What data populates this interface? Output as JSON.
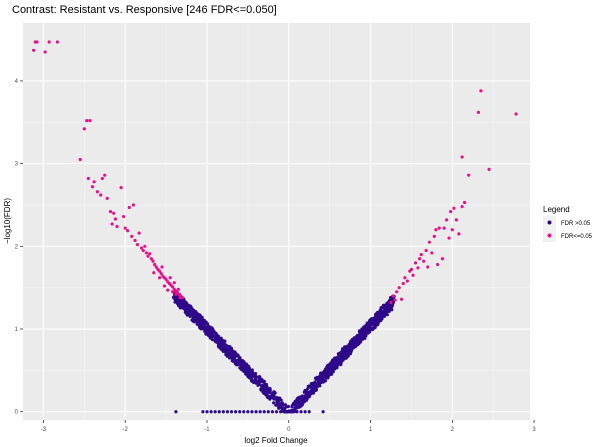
{
  "chart_data": {
    "type": "scatter",
    "title": "Contrast: Resistant vs. Responsive  [246 FDR<=0.050]",
    "xlabel": "log2 Fold Change",
    "ylabel": "−log10(FDR)",
    "xlim": [
      -3.25,
      2.95
    ],
    "ylim": [
      -0.1,
      4.7
    ],
    "x_ticks": [
      -3,
      -2,
      -1,
      0,
      1,
      2,
      3
    ],
    "y_ticks": [
      0,
      1,
      2,
      3,
      4
    ],
    "x_tick_labels": [
      "-3",
      "-2",
      "-1",
      "0",
      "1",
      "2",
      "3"
    ],
    "y_tick_labels": [
      "0",
      "1",
      "2",
      "3",
      "4"
    ],
    "grid": true,
    "legend": {
      "title": "Legend",
      "position": "right",
      "entries": [
        {
          "label": "FDR >0.05",
          "color": "#2e0a8a"
        },
        {
          "label": "FDR<=0.05",
          "color": "#e8118a"
        }
      ]
    },
    "colors": {
      "panel_bg": "#ebebeb",
      "grid": "#ffffff",
      "not_sig": "#2e0a8a",
      "sig": "#e8118a"
    },
    "series": [
      {
        "color": "#e8118a",
        "points": [
          [
            -3.12,
            4.37
          ],
          [
            -3.1,
            4.47
          ],
          [
            -3.08,
            4.47
          ],
          [
            -2.98,
            4.35
          ],
          [
            -2.93,
            4.47
          ],
          [
            -2.83,
            4.47
          ],
          [
            -2.55,
            3.05
          ],
          [
            -2.5,
            3.42
          ],
          [
            -2.47,
            3.52
          ],
          [
            -2.43,
            3.52
          ],
          [
            -2.45,
            2.82
          ],
          [
            -2.4,
            2.72
          ],
          [
            -2.38,
            2.78
          ],
          [
            -2.34,
            2.66
          ],
          [
            -2.3,
            2.62
          ],
          [
            -2.28,
            2.82
          ],
          [
            -2.25,
            2.86
          ],
          [
            -2.22,
            2.58
          ],
          [
            -2.18,
            2.42
          ],
          [
            -2.16,
            2.27
          ],
          [
            -2.14,
            2.4
          ],
          [
            -2.12,
            2.33
          ],
          [
            -2.1,
            2.24
          ],
          [
            -2.05,
            2.71
          ],
          [
            -2.02,
            2.36
          ],
          [
            -2.0,
            2.22
          ],
          [
            -1.97,
            2.19
          ],
          [
            -1.95,
            2.47
          ],
          [
            -1.92,
            2.12
          ],
          [
            -1.9,
            2.5
          ],
          [
            -1.88,
            2.07
          ],
          [
            -1.85,
            2.02
          ],
          [
            -1.83,
            2.16
          ],
          [
            -1.8,
            1.98
          ],
          [
            -1.78,
            1.95
          ],
          [
            -1.76,
            2.0
          ],
          [
            -1.74,
            1.92
          ],
          [
            -1.72,
            1.88
          ],
          [
            -1.7,
            1.91
          ],
          [
            -1.68,
            1.85
          ],
          [
            -1.66,
            1.82
          ],
          [
            -1.64,
            1.78
          ],
          [
            -1.62,
            1.75
          ],
          [
            -1.6,
            1.72
          ],
          [
            -1.58,
            1.7
          ],
          [
            -1.56,
            1.67
          ],
          [
            -1.54,
            1.64
          ],
          [
            -1.52,
            1.62
          ],
          [
            -1.5,
            1.6
          ],
          [
            -1.48,
            1.57
          ],
          [
            -1.46,
            1.55
          ],
          [
            -1.44,
            1.53
          ],
          [
            -1.42,
            1.51
          ],
          [
            -1.4,
            1.48
          ],
          [
            -1.38,
            1.46
          ],
          [
            -1.36,
            1.44
          ],
          [
            -1.34,
            1.42
          ],
          [
            -1.32,
            1.4
          ],
          [
            -1.65,
            1.68
          ],
          [
            -1.58,
            1.62
          ],
          [
            -1.55,
            1.75
          ],
          [
            -1.52,
            1.52
          ],
          [
            -1.48,
            1.47
          ],
          [
            -1.45,
            1.62
          ],
          [
            -1.42,
            1.45
          ],
          [
            -1.4,
            1.56
          ],
          [
            -1.38,
            1.42
          ],
          [
            -1.35,
            1.48
          ],
          [
            -1.33,
            1.38
          ],
          [
            -1.3,
            1.38
          ],
          [
            1.25,
            1.32
          ],
          [
            1.28,
            1.4
          ],
          [
            1.3,
            1.35
          ],
          [
            1.32,
            1.45
          ],
          [
            1.35,
            1.5
          ],
          [
            1.38,
            1.36
          ],
          [
            1.4,
            1.55
          ],
          [
            1.42,
            1.62
          ],
          [
            1.45,
            1.58
          ],
          [
            1.48,
            1.7
          ],
          [
            1.5,
            1.72
          ],
          [
            1.52,
            1.65
          ],
          [
            1.55,
            1.8
          ],
          [
            1.58,
            1.74
          ],
          [
            1.6,
            1.85
          ],
          [
            1.62,
            1.9
          ],
          [
            1.65,
            1.82
          ],
          [
            1.68,
            1.95
          ],
          [
            1.7,
            1.75
          ],
          [
            1.72,
            2.05
          ],
          [
            1.75,
            1.92
          ],
          [
            1.78,
            2.12
          ],
          [
            1.8,
            2.2
          ],
          [
            1.82,
            1.78
          ],
          [
            1.84,
            2.22
          ],
          [
            1.88,
            1.85
          ],
          [
            1.9,
            2.22
          ],
          [
            1.93,
            2.32
          ],
          [
            1.96,
            2.1
          ],
          [
            1.98,
            2.42
          ],
          [
            2.0,
            2.2
          ],
          [
            2.02,
            2.46
          ],
          [
            2.05,
            2.32
          ],
          [
            2.08,
            2.15
          ],
          [
            2.12,
            2.48
          ],
          [
            2.15,
            2.53
          ],
          [
            2.12,
            3.08
          ],
          [
            2.2,
            2.86
          ],
          [
            2.32,
            3.62
          ],
          [
            2.35,
            3.88
          ],
          [
            2.45,
            2.93
          ],
          [
            2.78,
            3.6
          ]
        ]
      }
    ]
  }
}
